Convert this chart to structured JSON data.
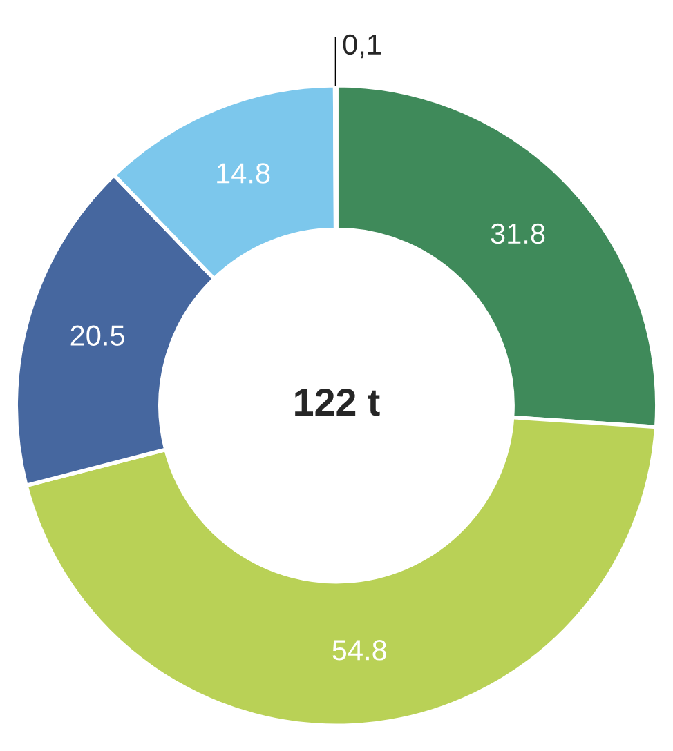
{
  "chart_data": {
    "type": "donut",
    "categories": [
      null,
      null,
      null,
      null,
      null
    ],
    "values": [
      31.8,
      54.8,
      20.5,
      14.8,
      0.1
    ],
    "value_labels": [
      "31.8",
      "54.8",
      "20.5",
      "14.8",
      "0,1"
    ],
    "colors": [
      "#3f8a5a",
      "#b9d156",
      "#46679f",
      "#7cc7ec",
      "#f3e46a"
    ],
    "annotations": [
      "122 t"
    ]
  }
}
